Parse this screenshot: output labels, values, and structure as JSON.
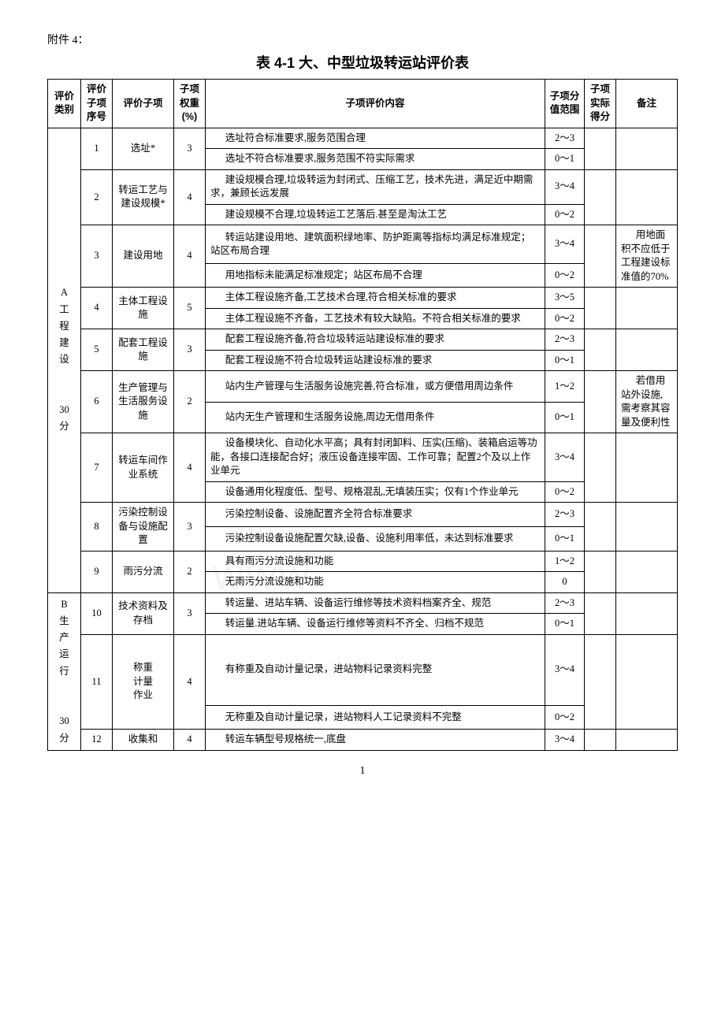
{
  "attachment_label": "附件 4：",
  "table_title": "表 4-1   大、中型垃圾转运站评价表",
  "headers": {
    "category": "评价\n类别",
    "seq": "评价\n子项\n序号",
    "item": "评价子项",
    "weight": "子项\n权重\n(%)",
    "content": "子项评价内容",
    "range": "子项分\n值范围",
    "score": "子项\n实际\n得分",
    "note": "备注"
  },
  "groupA": {
    "label": "A\n工\n程\n建\n设\n\n\n30\n分"
  },
  "groupB": {
    "label": "B\n生\n产\n运\n行\n\n\n30\n分"
  },
  "rows": {
    "r1": {
      "seq": "1",
      "item": "选址*",
      "weight": "3",
      "c1": "选址符合标准要求,服务范围合理",
      "v1": "2～3",
      "c2": "选址不符合标准要求,服务范围不符实际需求",
      "v2": "0～1"
    },
    "r2": {
      "seq": "2",
      "item": "转运工艺与建设规模*",
      "weight": "4",
      "c1": "建设规模合理,垃圾转运为封闭式、压缩工艺，技术先进，满足近中期需求，兼顾长远发展",
      "v1": "3～4",
      "c2": "建设规模不合理,垃圾转运工艺落后.甚至是淘汰工艺",
      "v2": "0～2"
    },
    "r3": {
      "seq": "3",
      "item": "建设用地",
      "weight": "4",
      "c1": "转运站建设用地、建筑面积绿地率、防护距离等指标均满足标准规定；站区布局合理",
      "v1": "3～4",
      "c2": "用地指标未能满足标准规定；站区布局不合理",
      "v2": "0～2",
      "note": "用地面积不应低于工程建设标准值的70%"
    },
    "r4": {
      "seq": "4",
      "item": "主体工程设施",
      "weight": "5",
      "c1": "主体工程设施齐备,工艺技术合理,符合相关标准的要求",
      "v1": "3～5",
      "c2": "主体工程设施不齐备，工艺技术有较大缺陷。不符合相关标准的要求",
      "v2": "0～2"
    },
    "r5": {
      "seq": "5",
      "item": "配套工程设施",
      "weight": "3",
      "c1": "配套工程设施齐备,符合垃圾转运站建设标准的要求",
      "v1": "2～3",
      "c2": "配套工程设施不符合垃圾转运站建设标准的要求",
      "v2": "0～1"
    },
    "r6": {
      "seq": "6",
      "item": "生产管理与生活服务设施",
      "weight": "2",
      "c1": "站内生产管理与生活服务设施完善,符合标准，或方便借用周边条件",
      "v1": "1～2",
      "c2": "站内无生产管理和生活服务设施,周边无借用条件",
      "v2": "0～1",
      "note": "若借用站外设施,需考察其容量及便利性"
    },
    "r7": {
      "seq": "7",
      "item": "转运车间作业系统",
      "weight": "4",
      "c1": "设备模块化、自动化水平高；具有封闭卸料、压实(压缩)、装箱启运等功能，各接口连接配合好；液压设备连接牢固、工作可靠；配置2个及以上作业单元",
      "v1": "3～4",
      "c2": "设备通用化程度低、型号、规格混乱,无填装压实；仅有1个作业单元",
      "v2": "0～2"
    },
    "r8": {
      "seq": "8",
      "item": "污染控制设备与设施配置",
      "weight": "3",
      "c1": "污染控制设备、设施配置齐全符合标准要求",
      "v1": "2～3",
      "c2": "污染控制设备设施配置欠缺,设备、设施利用率低，未达到标准要求",
      "v2": "0～1"
    },
    "r9": {
      "seq": "9",
      "item": "雨污分流",
      "weight": "2",
      "c1": "具有雨污分流设施和功能",
      "v1": "1～2",
      "c2": "无雨污分流设施和功能",
      "v2": "0"
    },
    "r10": {
      "seq": "10",
      "item": "技术资料及存档",
      "weight": "3",
      "c1": "转运量、进站车辆、设备运行维修等技术资料档案齐全、规范",
      "v1": "2～3",
      "c2": "转运量.进站车辆、设备运行维修等资料不齐全、归档不规范",
      "v2": "0～1"
    },
    "r11": {
      "seq": "11",
      "item": "称重\n计量\n作业",
      "weight": "4",
      "c1": "有称重及自动计量记录，进站物料记录资料完整",
      "v1": "3～4",
      "c2": "无称重及自动计量记录，进站物料人工记录资料不完整",
      "v2": "0～2"
    },
    "r12": {
      "seq": "12",
      "item": "收集和",
      "weight": "4",
      "c1": "转运车辆型号规格统一,底盘",
      "v1": "3～4"
    }
  },
  "page_number": "1",
  "watermark": "WWW"
}
